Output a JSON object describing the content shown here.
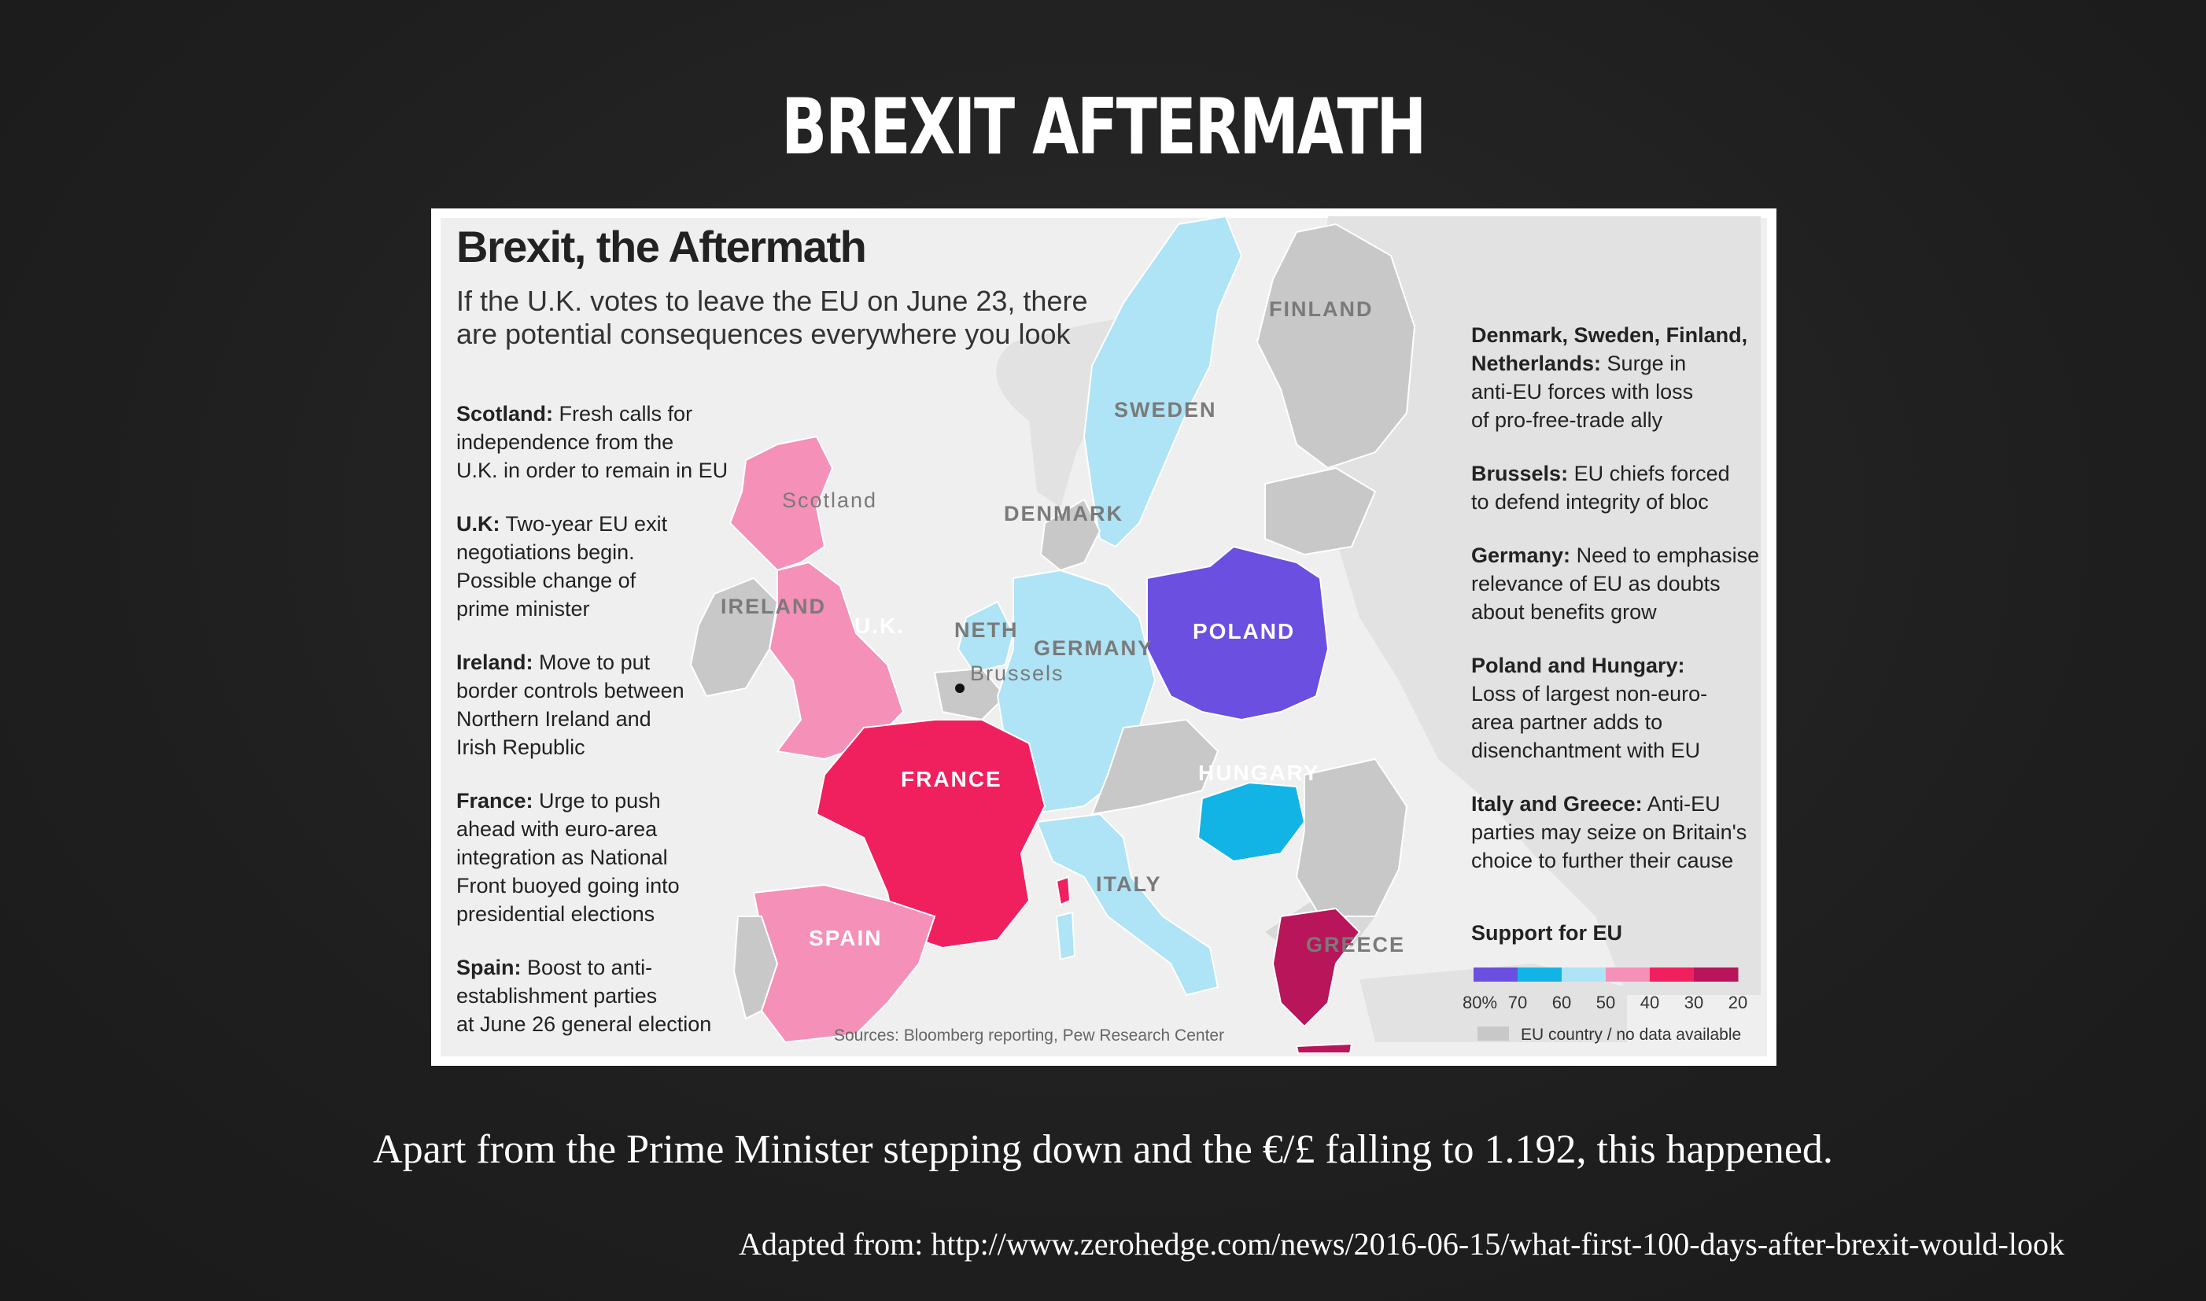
{
  "slide": {
    "title": "BREXIT AFTERMATH",
    "caption": "Apart from the Prime Minister stepping down and the €/£ falling to 1.192, this happened.",
    "source": "Adapted from: http://www.zerohedge.com/news/2016-06-15/what-first-100-days-after-brexit-would-look"
  },
  "map": {
    "title": "Brexit, the Aftermath",
    "subtitle_line1": "If the U.K. votes to leave the EU on June 23, there",
    "subtitle_line2": "are potential consequences everywhere you look",
    "sources": "Sources: Bloomberg reporting, Pew Research Center",
    "left_notes": [
      {
        "head": "Scotland:",
        "lines": [
          " Fresh calls for",
          "independence from the",
          "U.K. in order to remain in EU"
        ]
      },
      {
        "head": "U.K:",
        "lines": [
          " Two-year EU exit",
          "negotiations begin.",
          "Possible change of",
          "prime minister"
        ]
      },
      {
        "head": "Ireland:",
        "lines": [
          " Move to put",
          "border controls between",
          "Northern Ireland and",
          "Irish Republic"
        ]
      },
      {
        "head": "France:",
        "lines": [
          " Urge to push",
          "ahead with euro-area",
          "integration as National",
          "Front buoyed going into",
          "presidential elections"
        ]
      },
      {
        "head": "Spain:",
        "lines": [
          " Boost to anti-",
          "establishment parties",
          "at June 26 general election"
        ]
      }
    ],
    "right_notes": [
      {
        "head": "Denmark, Sweden, Finland,",
        "head2": "Netherlands:",
        "lines": [
          " Surge in",
          "anti-EU forces with loss",
          "of pro-free-trade ally"
        ]
      },
      {
        "head": "Brussels:",
        "lines": [
          " EU chiefs forced",
          "to defend integrity of bloc"
        ]
      },
      {
        "head": "Germany:",
        "lines": [
          " Need to emphasise",
          "relevance of EU as doubts",
          "about benefits grow"
        ]
      },
      {
        "head": "Poland and Hungary:",
        "lines": [
          "",
          "Loss of largest non-euro-",
          "area partner adds to",
          "disenchantment with EU"
        ]
      },
      {
        "head": "Italy and Greece:",
        "lines": [
          " Anti-EU",
          "parties may seize on Britain's",
          "choice to further their cause"
        ]
      }
    ],
    "legend": {
      "title": "Support for EU",
      "colors": [
        "#6a4fe0",
        "#12b4e6",
        "#aee4f5",
        "#f590b8",
        "#f0205f",
        "#b8155a"
      ],
      "ticks": [
        "80%",
        "70",
        "60",
        "50",
        "40",
        "30",
        "20"
      ],
      "na_label": "EU country / no data available",
      "na_color": "#c8c8c8"
    },
    "countries": {
      "finland": {
        "label": "FINLAND",
        "fill": "#c8c8c8"
      },
      "sweden": {
        "label": "SWEDEN",
        "fill": "#aee4f5"
      },
      "denmark": {
        "label": "DENMARK",
        "fill": "#c8c8c8"
      },
      "scotland": {
        "label": "Scotland",
        "fill": "#f590b8"
      },
      "uk": {
        "label": "U.K.",
        "fill": "#f590b8"
      },
      "ireland": {
        "label": "IRELAND",
        "fill": "#c8c8c8"
      },
      "netherlands": {
        "label": "NETH",
        "fill": "#aee4f5"
      },
      "brussels": {
        "label": "Brussels"
      },
      "germany": {
        "label": "GERMANY",
        "fill": "#aee4f5"
      },
      "poland": {
        "label": "POLAND",
        "fill": "#6a4fe0"
      },
      "hungary": {
        "label": "HUNGARY",
        "fill": "#12b4e6"
      },
      "france": {
        "label": "FRANCE",
        "fill": "#f0205f"
      },
      "spain": {
        "label": "SPAIN",
        "fill": "#f590b8"
      },
      "italy": {
        "label": "ITALY",
        "fill": "#aee4f5"
      },
      "greece": {
        "label": "GREECE",
        "fill": "#b8155a"
      }
    }
  }
}
